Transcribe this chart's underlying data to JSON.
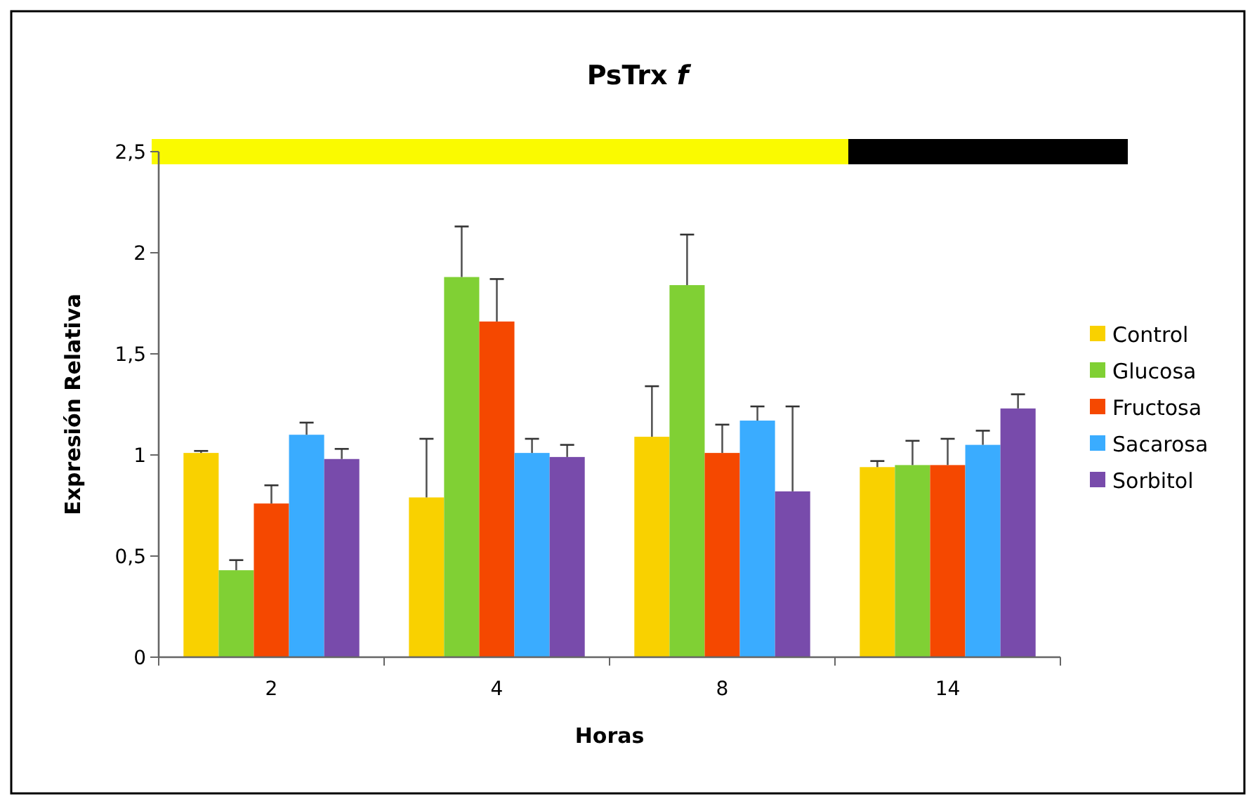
{
  "chart_data": {
    "type": "bar",
    "title": "PsTrx f",
    "xlabel": "Horas",
    "ylabel": "Expresión Relativa",
    "categories": [
      "2",
      "4",
      "8",
      "14"
    ],
    "series": [
      {
        "name": "Control",
        "color": "#f9d100",
        "values": [
          1.01,
          0.79,
          1.09,
          0.94
        ],
        "errors": [
          [
            1.01,
            1.02
          ],
          [
            0.79,
            1.08
          ],
          [
            1.09,
            1.34
          ],
          [
            0.94,
            0.97
          ]
        ]
      },
      {
        "name": "Glucosa",
        "color": "#80d034",
        "values": [
          0.43,
          1.88,
          1.84,
          0.95
        ],
        "errors": [
          [
            0.43,
            0.48
          ],
          [
            1.88,
            2.13
          ],
          [
            1.84,
            2.09
          ],
          [
            0.95,
            1.07
          ]
        ]
      },
      {
        "name": "Fructosa",
        "color": "#f54800",
        "values": [
          0.76,
          1.66,
          1.01,
          0.95
        ],
        "errors": [
          [
            0.76,
            0.85
          ],
          [
            1.66,
            1.87
          ],
          [
            1.01,
            1.15
          ],
          [
            0.95,
            1.08
          ]
        ]
      },
      {
        "name": "Sacarosa",
        "color": "#3aacff",
        "values": [
          1.1,
          1.01,
          1.17,
          1.05
        ],
        "errors": [
          [
            1.1,
            1.16
          ],
          [
            1.01,
            1.08
          ],
          [
            1.17,
            1.24
          ],
          [
            1.05,
            1.12
          ]
        ]
      },
      {
        "name": "Sorbitol",
        "color": "#784bab",
        "values": [
          0.98,
          0.99,
          0.82,
          1.23
        ],
        "errors": [
          [
            0.98,
            1.03
          ],
          [
            0.99,
            1.05
          ],
          [
            0.82,
            1.24
          ],
          [
            1.23,
            1.3
          ]
        ]
      }
    ],
    "ylim": [
      0,
      2.5
    ],
    "yticks": [
      0,
      {
        "value": 0.5,
        "label": "0,5"
      },
      1,
      {
        "value": 1.5,
        "label": "1,5"
      },
      2,
      {
        "value": 2.5,
        "label": "2,5"
      }
    ],
    "grid": false,
    "legend": "right"
  }
}
